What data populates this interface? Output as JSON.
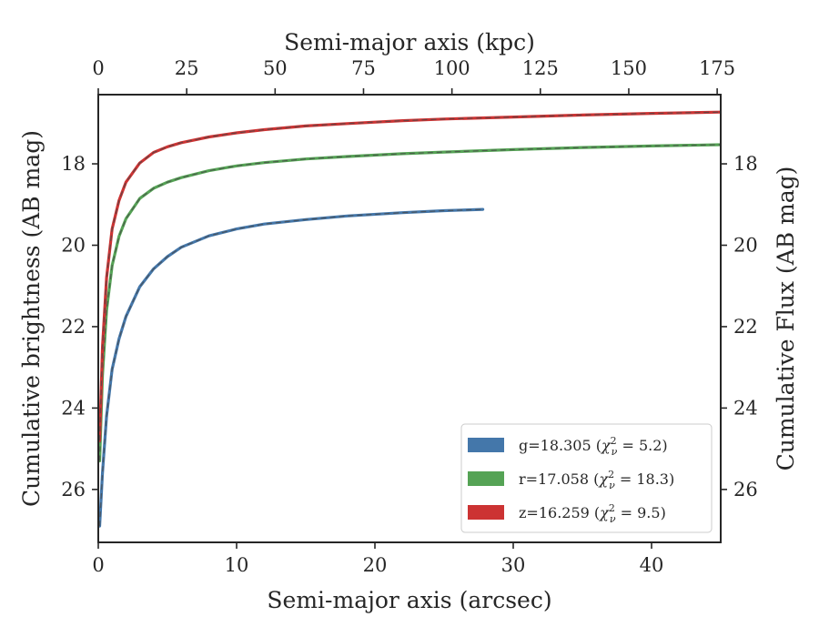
{
  "chart_data": {
    "type": "line",
    "xlabel": "Semi-major axis (arcsec)",
    "x2label": "Semi-major axis (kpc)",
    "ylabel": "Cumulative brightness (AB mag)",
    "y2label": "Cumulative Flux (AB mag)",
    "xlim": [
      0,
      45
    ],
    "x2lim": [
      0,
      176
    ],
    "ylim": [
      27.3,
      16.3
    ],
    "y_inverted": true,
    "x_ticks": [
      "0",
      "10",
      "20",
      "30",
      "40"
    ],
    "x2_ticks": [
      "0",
      "25",
      "50",
      "75",
      "100",
      "125",
      "150",
      "175"
    ],
    "y_ticks": [
      "18",
      "20",
      "22",
      "24",
      "26"
    ],
    "y2_ticks": [
      "18",
      "20",
      "22",
      "24",
      "26"
    ],
    "grid": false,
    "legend_position": "lower-right",
    "series": [
      {
        "band": "g",
        "label_prefix": "g=18.305 (",
        "chi2": "5.2",
        "color": "#4477aa",
        "x": [
          0.1,
          0.3,
          0.6,
          1.0,
          1.5,
          2.0,
          3.0,
          4.0,
          5.0,
          6.0,
          8.0,
          10.0,
          12.0,
          15.0,
          18.0,
          22.0,
          25.0,
          27.8
        ],
        "y": [
          26.9,
          25.6,
          24.2,
          23.05,
          22.3,
          21.75,
          21.02,
          20.58,
          20.28,
          20.05,
          19.77,
          19.6,
          19.48,
          19.37,
          19.28,
          19.2,
          19.15,
          19.12
        ]
      },
      {
        "band": "r",
        "label_prefix": "r=17.058 (",
        "chi2": "18.3",
        "color": "#55a355",
        "x": [
          0.1,
          0.3,
          0.6,
          1.0,
          1.5,
          2.0,
          3.0,
          4.0,
          5.0,
          6.0,
          8.0,
          10.0,
          12.0,
          15.0,
          18.0,
          22.0,
          25.0,
          30.0,
          35.0,
          40.0,
          45.0
        ],
        "y": [
          25.3,
          23.2,
          21.6,
          20.5,
          19.78,
          19.35,
          18.85,
          18.6,
          18.45,
          18.34,
          18.17,
          18.05,
          17.97,
          17.88,
          17.82,
          17.75,
          17.71,
          17.65,
          17.6,
          17.56,
          17.53
        ]
      },
      {
        "band": "z",
        "label_prefix": "z=16.259 (",
        "chi2": "9.5",
        "color": "#cc3333",
        "x": [
          0.1,
          0.3,
          0.6,
          1.0,
          1.5,
          2.0,
          3.0,
          4.0,
          5.0,
          6.0,
          8.0,
          10.0,
          12.0,
          15.0,
          18.0,
          22.0,
          25.0,
          30.0,
          35.0,
          40.0,
          45.0
        ],
        "y": [
          24.8,
          22.5,
          20.8,
          19.6,
          18.9,
          18.45,
          17.98,
          17.72,
          17.58,
          17.48,
          17.34,
          17.24,
          17.16,
          17.07,
          17.01,
          16.94,
          16.9,
          16.85,
          16.8,
          16.76,
          16.73
        ]
      }
    ]
  }
}
